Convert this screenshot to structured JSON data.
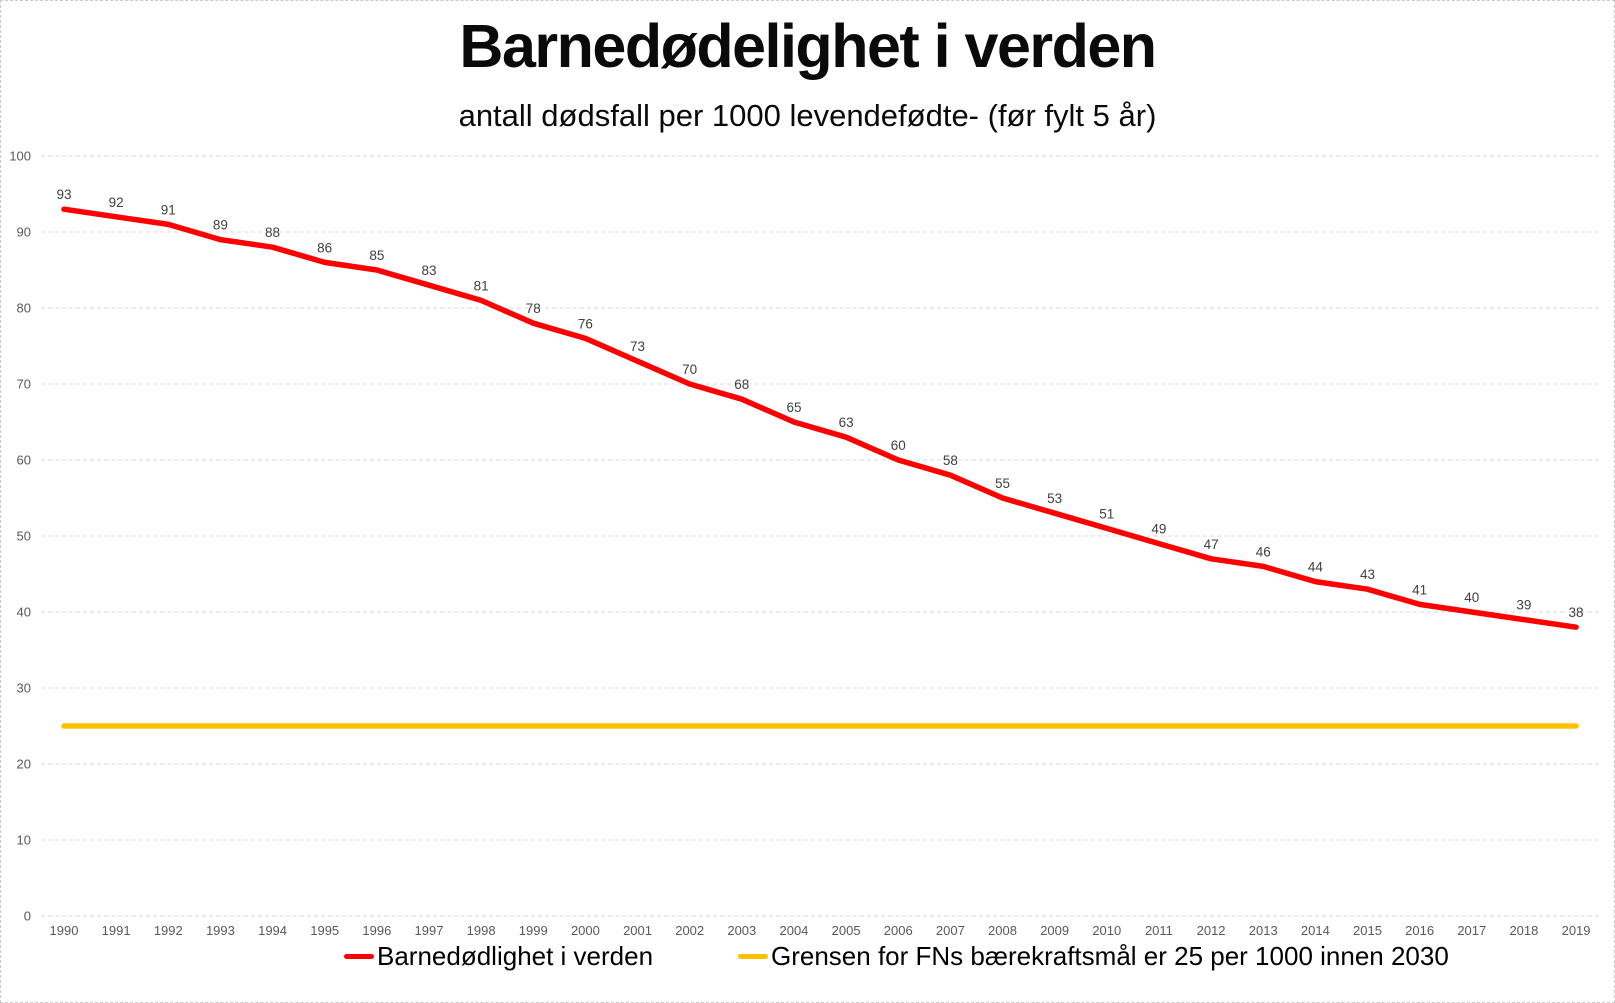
{
  "chart_data": {
    "type": "line",
    "title": "Barnedødelighet i verden",
    "subtitle": "antall dødsfall per 1000 levendefødte- (før fylt 5 år)",
    "x": [
      1990,
      1991,
      1992,
      1993,
      1994,
      1995,
      1996,
      1997,
      1998,
      1999,
      2000,
      2001,
      2002,
      2003,
      2004,
      2005,
      2006,
      2007,
      2008,
      2009,
      2010,
      2011,
      2012,
      2013,
      2014,
      2015,
      2016,
      2017,
      2018,
      2019
    ],
    "series": [
      {
        "name": "Barnedødlighet i verden",
        "color": "#FF0000",
        "data_labels": true,
        "values": [
          93,
          92,
          91,
          89,
          88,
          86,
          85,
          83,
          81,
          78,
          76,
          73,
          70,
          68,
          65,
          63,
          60,
          58,
          55,
          53,
          51,
          49,
          47,
          46,
          44,
          43,
          41,
          40,
          39,
          38
        ]
      },
      {
        "name": "Grensen for FNs bærekraftsmål er 25 per 1000 innen 2030",
        "color": "#FFC000",
        "data_labels": false,
        "values": [
          25,
          25,
          25,
          25,
          25,
          25,
          25,
          25,
          25,
          25,
          25,
          25,
          25,
          25,
          25,
          25,
          25,
          25,
          25,
          25,
          25,
          25,
          25,
          25,
          25,
          25,
          25,
          25,
          25,
          25
        ]
      }
    ],
    "ylim": [
      0,
      100
    ],
    "yticks": [
      0,
      10,
      20,
      30,
      40,
      50,
      60,
      70,
      80,
      90,
      100
    ],
    "xlabel": "",
    "ylabel": "",
    "grid": "horizontal-dashed",
    "gridline_color": "#d9d9d9",
    "axis_label_color": "#595959",
    "data_label_color": "#404040",
    "legend_position": "bottom"
  }
}
